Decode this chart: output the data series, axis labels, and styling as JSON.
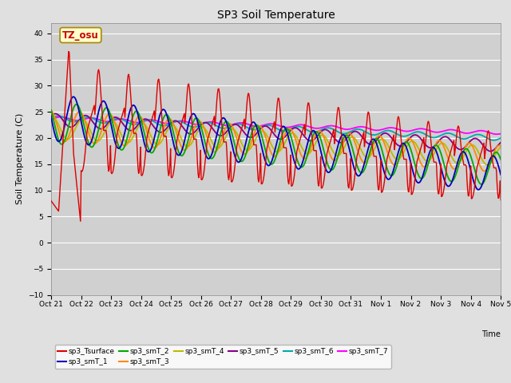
{
  "title": "SP3 Soil Temperature",
  "ylabel": "Soil Temperature (C)",
  "xlabel": "Time",
  "annotation": "TZ_osu",
  "ylim": [
    -10,
    42
  ],
  "yticks": [
    -10,
    -5,
    0,
    5,
    10,
    15,
    20,
    25,
    30,
    35,
    40
  ],
  "background_color": "#e0e0e0",
  "plot_bg_color": "#d0d0d0",
  "series_colors": {
    "sp3_Tsurface": "#dd0000",
    "sp3_smT_1": "#0000bb",
    "sp3_smT_2": "#00aa00",
    "sp3_smT_3": "#ff8800",
    "sp3_smT_4": "#bbbb00",
    "sp3_smT_5": "#880088",
    "sp3_smT_6": "#00aaaa",
    "sp3_smT_7": "#ff00ff"
  },
  "n_days": 15,
  "start_day": 21
}
